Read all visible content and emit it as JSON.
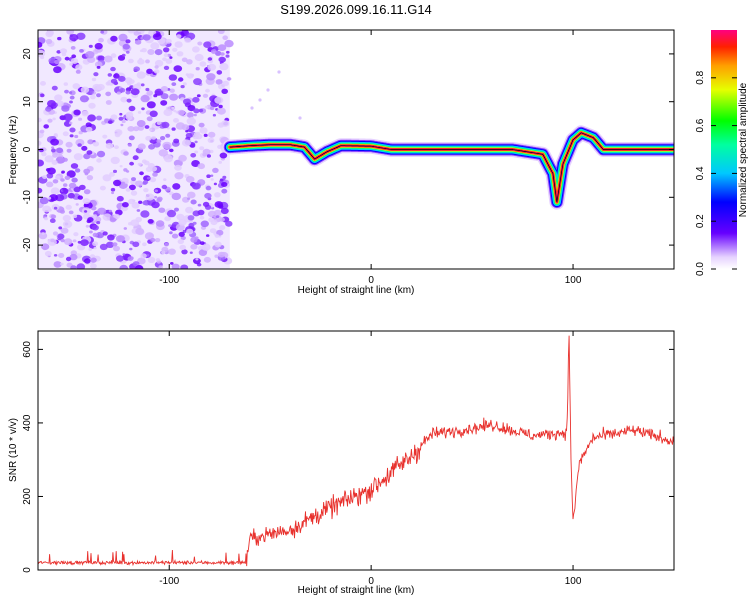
{
  "title": "S199.2026.099.16.11.G14",
  "chart_data": [
    {
      "type": "heatmap",
      "name": "spectrogram",
      "xlabel": "Height of straight line (km)",
      "ylabel": "Frequency (Hz)",
      "xlim": [
        -165,
        150
      ],
      "ylim": [
        -25,
        25
      ],
      "xticks": [
        -100,
        0,
        100
      ],
      "yticks": [
        20,
        10,
        0,
        -10,
        -20
      ],
      "noise_region_x": [
        -165,
        -70
      ],
      "signal_track": [
        {
          "x": -70,
          "y": 0.5
        },
        {
          "x": -60,
          "y": 0.8
        },
        {
          "x": -50,
          "y": 1.0
        },
        {
          "x": -40,
          "y": 1.0
        },
        {
          "x": -33,
          "y": 0.5
        },
        {
          "x": -28,
          "y": -2.0
        },
        {
          "x": -22,
          "y": -0.5
        },
        {
          "x": -15,
          "y": 0.8
        },
        {
          "x": 0,
          "y": 0.7
        },
        {
          "x": 10,
          "y": 0.0
        },
        {
          "x": 40,
          "y": 0.0
        },
        {
          "x": 70,
          "y": 0.0
        },
        {
          "x": 85,
          "y": -1.0
        },
        {
          "x": 90,
          "y": -5.0
        },
        {
          "x": 92,
          "y": -11.0
        },
        {
          "x": 95,
          "y": -3.0
        },
        {
          "x": 100,
          "y": 2.0
        },
        {
          "x": 104,
          "y": 3.5
        },
        {
          "x": 110,
          "y": 2.5
        },
        {
          "x": 115,
          "y": 0.0
        },
        {
          "x": 150,
          "y": 0.0
        }
      ],
      "colorbar": {
        "label": "Normalized spectral amplitude",
        "range": [
          0,
          1
        ],
        "ticks": [
          "0.0",
          "0.2",
          "0.4",
          "0.6",
          "0.8"
        ]
      }
    },
    {
      "type": "line",
      "name": "snr",
      "xlabel": "Height of straight line (km)",
      "ylabel": "SNR (10 * v/v)",
      "xlim": [
        -165,
        150
      ],
      "ylim": [
        0,
        650
      ],
      "xticks": [
        -100,
        0,
        100
      ],
      "yticks": [
        0,
        200,
        400,
        600
      ],
      "color": "#e8312d",
      "series_trend": [
        {
          "x": -165,
          "y": 20
        },
        {
          "x": -62,
          "y": 20
        },
        {
          "x": -60,
          "y": 85
        },
        {
          "x": -40,
          "y": 110
        },
        {
          "x": -20,
          "y": 170
        },
        {
          "x": 0,
          "y": 220
        },
        {
          "x": 20,
          "y": 310
        },
        {
          "x": 30,
          "y": 370
        },
        {
          "x": 50,
          "y": 385
        },
        {
          "x": 60,
          "y": 395
        },
        {
          "x": 80,
          "y": 365
        },
        {
          "x": 97,
          "y": 375
        },
        {
          "x": 98,
          "y": 650
        },
        {
          "x": 99,
          "y": 300
        },
        {
          "x": 100,
          "y": 125
        },
        {
          "x": 103,
          "y": 290
        },
        {
          "x": 110,
          "y": 360
        },
        {
          "x": 130,
          "y": 380
        },
        {
          "x": 150,
          "y": 350
        }
      ]
    }
  ]
}
